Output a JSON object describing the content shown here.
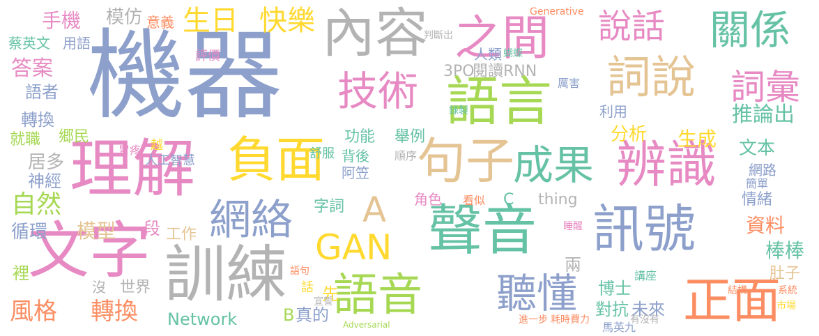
{
  "palette": {
    "blue": "#8DA0CB",
    "green": "#A6D854",
    "orange": "#FC8D62",
    "pink": "#E78AC3",
    "teal": "#66C2A5",
    "gold": "#E5C494",
    "gray": "#B3B3B3",
    "yellow": "#FFD92F",
    "background": "#FFFFFF"
  },
  "words": [
    {
      "text": "機器",
      "color": "blue"
    },
    {
      "text": "內容",
      "color": "gray"
    },
    {
      "text": "之間",
      "color": "pink"
    },
    {
      "text": "說話",
      "color": "pink"
    },
    {
      "text": "關係",
      "color": "teal"
    },
    {
      "text": "語言",
      "color": "green"
    },
    {
      "text": "詞說",
      "color": "gold"
    },
    {
      "text": "技術",
      "color": "pink"
    },
    {
      "text": "詞彙",
      "color": "pink"
    },
    {
      "text": "理解",
      "color": "pink"
    },
    {
      "text": "負面",
      "color": "yellow"
    },
    {
      "text": "句子",
      "color": "gold"
    },
    {
      "text": "成果",
      "color": "teal"
    },
    {
      "text": "辨識",
      "color": "pink"
    },
    {
      "text": "文字",
      "color": "pink"
    },
    {
      "text": "訓練",
      "color": "gray"
    },
    {
      "text": "網絡",
      "color": "blue"
    },
    {
      "text": "GAN",
      "color": "yellow"
    },
    {
      "text": "A",
      "color": "gold"
    },
    {
      "text": "聲音",
      "color": "teal"
    },
    {
      "text": "訊號",
      "color": "blue"
    },
    {
      "text": "語音",
      "color": "green"
    },
    {
      "text": "聽懂",
      "color": "blue"
    },
    {
      "text": "正面",
      "color": "orange"
    },
    {
      "text": "生日",
      "color": "yellow"
    },
    {
      "text": "快樂",
      "color": "yellow"
    },
    {
      "text": "手機",
      "color": "pink"
    },
    {
      "text": "模仿",
      "color": "gray"
    },
    {
      "text": "意義",
      "color": "orange"
    },
    {
      "text": "答案",
      "color": "pink"
    },
    {
      "text": "語者",
      "color": "blue"
    },
    {
      "text": "用語",
      "color": "blue"
    },
    {
      "text": "蔡英文",
      "color": "teal"
    },
    {
      "text": "評價",
      "color": "pink"
    },
    {
      "text": "轉換",
      "color": "blue"
    },
    {
      "text": "郷民",
      "color": "green"
    },
    {
      "text": "居多",
      "color": "gray"
    },
    {
      "text": "神經",
      "color": "blue"
    },
    {
      "text": "就職",
      "color": "green"
    },
    {
      "text": "胃疼",
      "color": "pink"
    },
    {
      "text": "越",
      "color": "yellow"
    },
    {
      "text": "人工智慧",
      "color": "blue"
    },
    {
      "text": "自然",
      "color": "green"
    },
    {
      "text": "循環",
      "color": "blue"
    },
    {
      "text": "模型",
      "color": "gold"
    },
    {
      "text": "一段",
      "color": "pink"
    },
    {
      "text": "工作",
      "color": "gold"
    },
    {
      "text": "風格",
      "color": "orange"
    },
    {
      "text": "轉換",
      "color": "orange"
    },
    {
      "text": "Network",
      "color": "teal"
    },
    {
      "text": "世界",
      "color": "gray"
    },
    {
      "text": "沒",
      "color": "gray"
    },
    {
      "text": "裡",
      "color": "green"
    },
    {
      "text": "B",
      "color": "green"
    },
    {
      "text": "真的",
      "color": "blue"
    },
    {
      "text": "3PO",
      "color": "gray"
    },
    {
      "text": "閱讀",
      "color": "gray"
    },
    {
      "text": "RNN",
      "color": "gray"
    },
    {
      "text": "人類",
      "color": "blue"
    },
    {
      "text": "功能",
      "color": "teal"
    },
    {
      "text": "舉例",
      "color": "teal"
    },
    {
      "text": "舒服",
      "color": "teal"
    },
    {
      "text": "背後",
      "color": "teal"
    },
    {
      "text": "順序",
      "color": "gray"
    },
    {
      "text": "阿笠",
      "color": "blue"
    },
    {
      "text": "字詞",
      "color": "teal"
    },
    {
      "text": "角色",
      "color": "pink"
    },
    {
      "text": "看似",
      "color": "orange"
    },
    {
      "text": "thing",
      "color": "gray"
    },
    {
      "text": "C",
      "color": "teal"
    },
    {
      "text": "利用",
      "color": "blue"
    },
    {
      "text": "推論出",
      "color": "teal"
    },
    {
      "text": "分析",
      "color": "yellow"
    },
    {
      "text": "生成",
      "color": "yellow"
    },
    {
      "text": "文本",
      "color": "teal"
    },
    {
      "text": "網路",
      "color": "blue"
    },
    {
      "text": "簡單",
      "color": "blue"
    },
    {
      "text": "情緒",
      "color": "blue"
    },
    {
      "text": "資料",
      "color": "orange"
    },
    {
      "text": "棒棒",
      "color": "teal"
    },
    {
      "text": "睡醒",
      "color": "pink"
    },
    {
      "text": "兩",
      "color": "gray"
    },
    {
      "text": "博士",
      "color": "teal"
    },
    {
      "text": "講座",
      "color": "teal"
    },
    {
      "text": "對抗",
      "color": "teal"
    },
    {
      "text": "未來",
      "color": "blue"
    },
    {
      "text": "肚子",
      "color": "gold"
    },
    {
      "text": "馬英九",
      "color": "blue"
    },
    {
      "text": "先",
      "color": "yellow"
    },
    {
      "text": "話",
      "color": "yellow"
    },
    {
      "text": "語句",
      "color": "orange"
    },
    {
      "text": "宣誓",
      "color": "gray"
    },
    {
      "text": "厲害",
      "color": "blue"
    },
    {
      "text": "進一步",
      "color": "orange"
    },
    {
      "text": "耗時費力",
      "color": "orange"
    },
    {
      "text": "有沒有",
      "color": "gray"
    },
    {
      "text": "Generative",
      "color": "orange"
    },
    {
      "text": "Adversarial",
      "color": "green"
    },
    {
      "text": "判斷出",
      "color": "gray"
    },
    {
      "text": "蝴蝶",
      "color": "teal"
    },
    {
      "text": "錄製",
      "color": "teal"
    },
    {
      "text": "市場",
      "color": "yellow"
    },
    {
      "text": "系統",
      "color": "orange"
    },
    {
      "text": "結構",
      "color": "orange"
    }
  ]
}
